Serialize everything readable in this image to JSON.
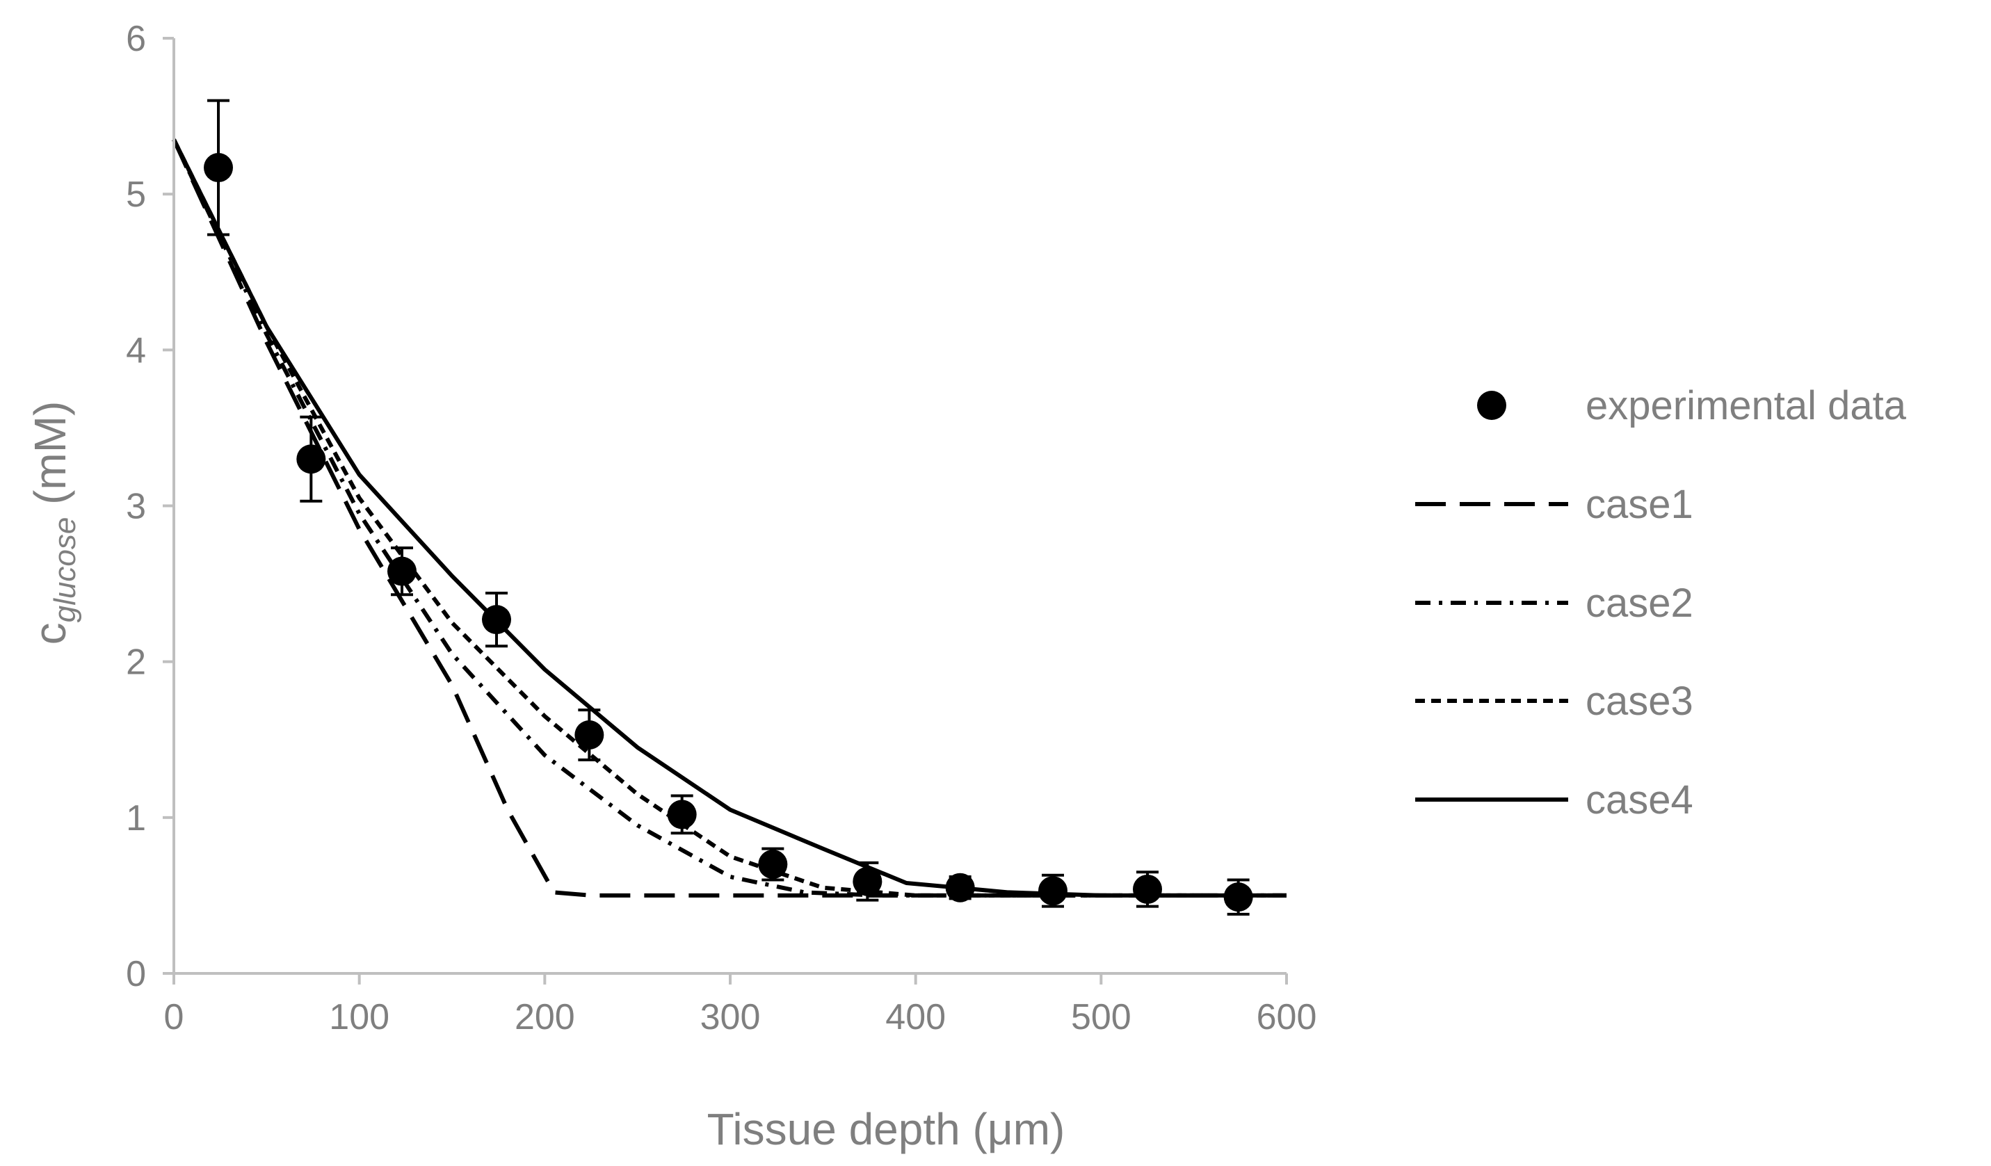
{
  "chart_data": {
    "type": "scatter",
    "title": "",
    "xlabel": "Tissue depth (μm)",
    "ylabel_main": "c",
    "ylabel_sub": "glucose",
    "ylabel_unit": " (mM)",
    "xlim": [
      0,
      600
    ],
    "ylim": [
      0,
      6
    ],
    "xticks": [
      0,
      100,
      200,
      300,
      400,
      500,
      600
    ],
    "yticks": [
      0,
      1,
      2,
      3,
      4,
      5,
      6
    ],
    "grid": false,
    "legend_position": "right",
    "series": [
      {
        "name": "experimental data",
        "kind": "points",
        "x": [
          24,
          74,
          123,
          174,
          224,
          274,
          323,
          374,
          424,
          474,
          525,
          574
        ],
        "y": [
          5.17,
          3.3,
          2.58,
          2.27,
          1.53,
          1.02,
          0.7,
          0.59,
          0.55,
          0.53,
          0.54,
          0.49
        ],
        "error": [
          0.43,
          0.27,
          0.15,
          0.17,
          0.16,
          0.12,
          0.1,
          0.12,
          0.07,
          0.1,
          0.11,
          0.11
        ]
      },
      {
        "name": "case1",
        "kind": "line",
        "dash": "long-dash",
        "x": [
          0,
          50,
          100,
          150,
          180,
          205,
          225,
          300,
          400,
          500,
          600
        ],
        "y": [
          5.35,
          4.05,
          2.85,
          1.85,
          1.05,
          0.52,
          0.5,
          0.5,
          0.5,
          0.5,
          0.5
        ]
      },
      {
        "name": "case2",
        "kind": "line",
        "dash": "dash-dot",
        "x": [
          0,
          50,
          100,
          150,
          200,
          250,
          300,
          340,
          380,
          420,
          500,
          600
        ],
        "y": [
          5.35,
          4.1,
          2.95,
          2.05,
          1.4,
          0.95,
          0.62,
          0.52,
          0.5,
          0.5,
          0.5,
          0.5
        ]
      },
      {
        "name": "case3",
        "kind": "line",
        "dash": "short-dash",
        "x": [
          0,
          50,
          100,
          150,
          200,
          250,
          300,
          350,
          400,
          450,
          500,
          600
        ],
        "y": [
          5.35,
          4.15,
          3.05,
          2.25,
          1.65,
          1.15,
          0.75,
          0.55,
          0.5,
          0.5,
          0.5,
          0.5
        ]
      },
      {
        "name": "case4",
        "kind": "line",
        "dash": "solid",
        "x": [
          0,
          50,
          100,
          150,
          200,
          250,
          300,
          350,
          395,
          450,
          500,
          600
        ],
        "y": [
          5.35,
          4.15,
          3.2,
          2.55,
          1.95,
          1.45,
          1.05,
          0.8,
          0.58,
          0.52,
          0.5,
          0.5
        ]
      }
    ]
  }
}
